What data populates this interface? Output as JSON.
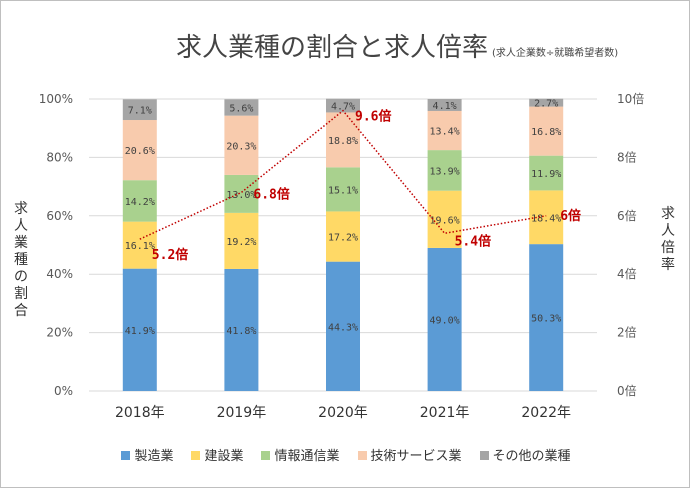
{
  "chart_data": {
    "type": "bar",
    "title": "求人業種の割合と求人倍率",
    "subtitle": "(求人企業数÷就職希望者数)",
    "categories": [
      "2018年",
      "2019年",
      "2020年",
      "2021年",
      "2022年"
    ],
    "series": [
      {
        "name": "製造業",
        "color": "#5b9bd5",
        "values": [
          41.9,
          41.8,
          44.3,
          49.0,
          50.3
        ],
        "labels": [
          "41.9%",
          "41.8%",
          "44.3%",
          "49.0%",
          "50.3%"
        ]
      },
      {
        "name": "建設業",
        "color": "#ffd966",
        "values": [
          16.1,
          19.2,
          17.2,
          19.6,
          18.4
        ],
        "labels": [
          "16.1%",
          "19.2%",
          "17.2%",
          "19.6%",
          "18.4%"
        ]
      },
      {
        "name": "情報通信業",
        "color": "#a9d18e",
        "values": [
          14.2,
          13.0,
          15.1,
          13.9,
          11.9
        ],
        "labels": [
          "14.2%",
          "13.0%",
          "15.1%",
          "13.9%",
          "11.9%"
        ]
      },
      {
        "name": "技術サービス業",
        "color": "#f8cbad",
        "values": [
          20.6,
          20.3,
          18.8,
          13.4,
          16.8
        ],
        "labels": [
          "20.6%",
          "20.3%",
          "18.8%",
          "13.4%",
          "16.8%"
        ]
      },
      {
        "name": "その他の業種",
        "color": "#a5a5a5",
        "values": [
          7.1,
          5.6,
          4.7,
          4.1,
          2.7
        ],
        "labels": [
          "7.1%",
          "5.6%",
          "4.7%",
          "4.1%",
          "2.7%"
        ]
      }
    ],
    "ratio": {
      "values": [
        5.2,
        6.8,
        9.6,
        5.4,
        6
      ],
      "labels": [
        "5.2倍",
        "6.8倍",
        "9.6倍",
        "5.4倍",
        "6倍"
      ],
      "color": "#c00000"
    },
    "ylabel": "求人業種の割合",
    "y2label": "求人倍率",
    "ylim": [
      0,
      100
    ],
    "y2lim": [
      0,
      10
    ],
    "y_ticks": [
      "0%",
      "20%",
      "40%",
      "60%",
      "80%",
      "100%"
    ],
    "y2_ticks": [
      "0倍",
      "2倍",
      "4倍",
      "6倍",
      "8倍",
      "10倍"
    ],
    "grid": true,
    "legend_position": "bottom"
  }
}
